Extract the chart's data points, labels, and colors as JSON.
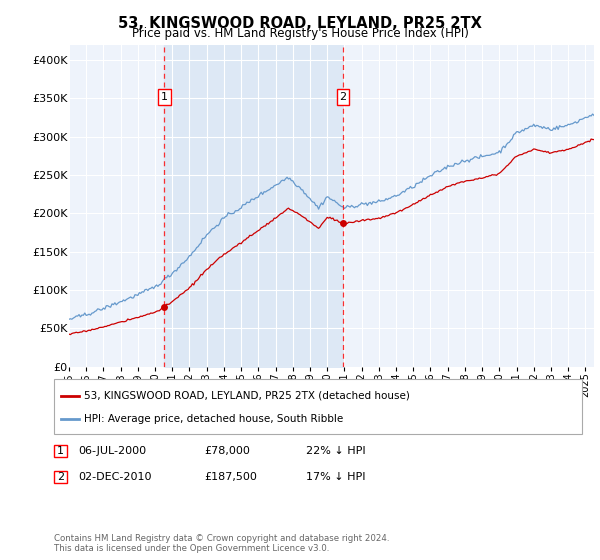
{
  "title": "53, KINGSWOOD ROAD, LEYLAND, PR25 2TX",
  "subtitle": "Price paid vs. HM Land Registry's House Price Index (HPI)",
  "property_label": "53, KINGSWOOD ROAD, LEYLAND, PR25 2TX (detached house)",
  "hpi_label": "HPI: Average price, detached house, South Ribble",
  "footnote": "Contains HM Land Registry data © Crown copyright and database right 2024.\nThis data is licensed under the Open Government Licence v3.0.",
  "sale1": {
    "label": "1",
    "date": "06-JUL-2000",
    "price": 78000,
    "pct": "22% ↓ HPI"
  },
  "sale2": {
    "label": "2",
    "date": "02-DEC-2010",
    "price": 187500,
    "pct": "17% ↓ HPI"
  },
  "sale1_x": 2000.542,
  "sale2_x": 2010.917,
  "property_color": "#cc0000",
  "hpi_color": "#6699cc",
  "shade_color": "#dde8f5",
  "background_color": "#eef3fb",
  "grid_color": "#ffffff",
  "ylim": [
    0,
    420000
  ],
  "yticks": [
    0,
    50000,
    100000,
    150000,
    200000,
    250000,
    300000,
    350000,
    400000
  ],
  "xlim_start": 1995.0,
  "xlim_end": 2025.5
}
